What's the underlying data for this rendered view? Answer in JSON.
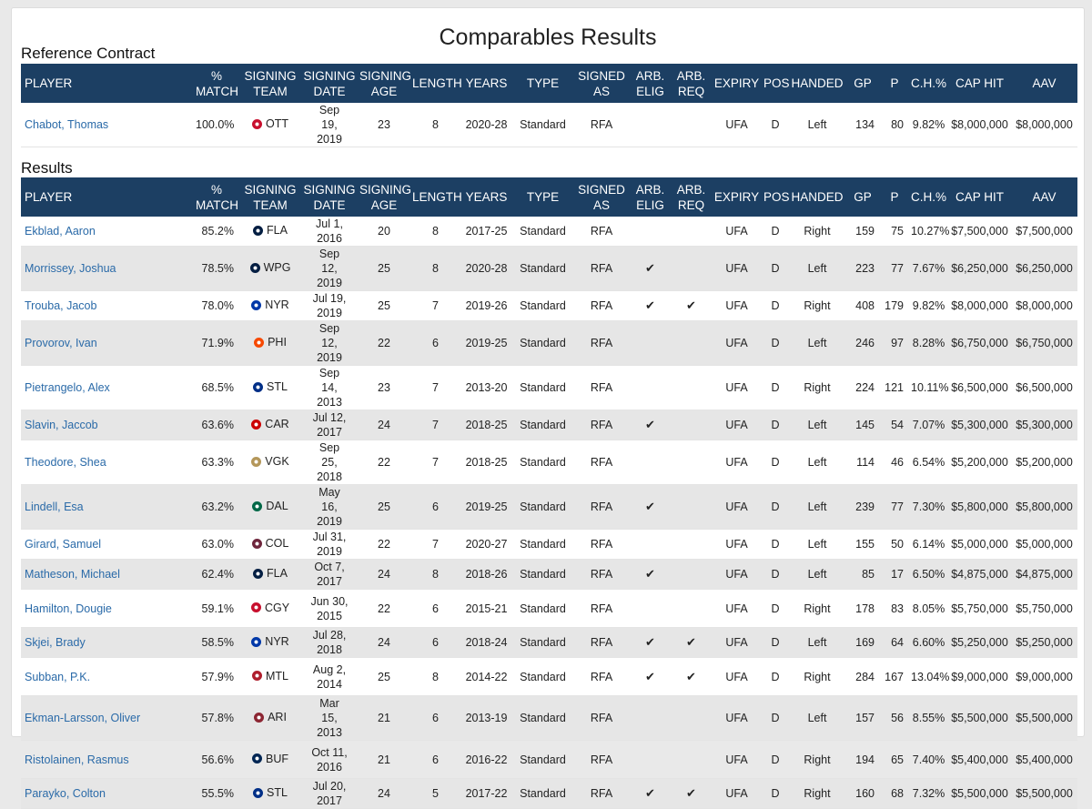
{
  "page_title": "Comparables Results",
  "reference_title": "Reference Contract",
  "results_title": "Results",
  "columns": [
    "PLAYER",
    "% MATCH",
    "SIGNING TEAM",
    "SIGNING DATE",
    "SIGNING AGE",
    "LENGTH",
    "YEARS",
    "TYPE",
    "SIGNED AS",
    "ARB. ELIG",
    "ARB. REQ",
    "EXPIRY",
    "POS",
    "HANDED",
    "GP",
    "P",
    "C.H.%",
    "CAP HIT",
    "AAV"
  ],
  "check_glyph": "✔",
  "team_colors": {
    "OTT": "#c8102e",
    "FLA": "#041e42",
    "WPG": "#041e42",
    "NYR": "#0038a8",
    "PHI": "#f74902",
    "STL": "#002f87",
    "CAR": "#cc0000",
    "VGK": "#b4975a",
    "DAL": "#006847",
    "COL": "#6f263d",
    "CGY": "#c8102e",
    "MTL": "#af1e2d",
    "ARI": "#8c2633",
    "BUF": "#002654"
  },
  "reference": [
    {
      "player": "Chabot, Thomas",
      "match": "100.0%",
      "team": "OTT",
      "date": "Sep 19, 2019",
      "age": "23",
      "length": "8",
      "years": "2020-28",
      "type": "Standard",
      "signed_as": "RFA",
      "arb_elig": "",
      "arb_req": "",
      "expiry": "UFA",
      "pos": "D",
      "handed": "Left",
      "gp": "134",
      "p": "80",
      "ch": "9.82%",
      "cap_hit": "$8,000,000",
      "aav": "$8,000,000"
    }
  ],
  "results": [
    {
      "player": "Ekblad, Aaron",
      "match": "85.2%",
      "team": "FLA",
      "date": "Jul 1, 2016",
      "age": "20",
      "length": "8",
      "years": "2017-25",
      "type": "Standard",
      "signed_as": "RFA",
      "arb_elig": "",
      "arb_req": "",
      "expiry": "UFA",
      "pos": "D",
      "handed": "Right",
      "gp": "159",
      "p": "75",
      "ch": "10.27%",
      "cap_hit": "$7,500,000",
      "aav": "$7,500,000"
    },
    {
      "player": "Morrissey, Joshua",
      "match": "78.5%",
      "team": "WPG",
      "date": "Sep 12, 2019",
      "age": "25",
      "length": "8",
      "years": "2020-28",
      "type": "Standard",
      "signed_as": "RFA",
      "arb_elig": "✔",
      "arb_req": "",
      "expiry": "UFA",
      "pos": "D",
      "handed": "Left",
      "gp": "223",
      "p": "77",
      "ch": "7.67%",
      "cap_hit": "$6,250,000",
      "aav": "$6,250,000"
    },
    {
      "player": "Trouba, Jacob",
      "match": "78.0%",
      "team": "NYR",
      "date": "Jul 19, 2019",
      "age": "25",
      "length": "7",
      "years": "2019-26",
      "type": "Standard",
      "signed_as": "RFA",
      "arb_elig": "✔",
      "arb_req": "✔",
      "expiry": "UFA",
      "pos": "D",
      "handed": "Right",
      "gp": "408",
      "p": "179",
      "ch": "9.82%",
      "cap_hit": "$8,000,000",
      "aav": "$8,000,000"
    },
    {
      "player": "Provorov, Ivan",
      "match": "71.9%",
      "team": "PHI",
      "date": "Sep 12, 2019",
      "age": "22",
      "length": "6",
      "years": "2019-25",
      "type": "Standard",
      "signed_as": "RFA",
      "arb_elig": "",
      "arb_req": "",
      "expiry": "UFA",
      "pos": "D",
      "handed": "Left",
      "gp": "246",
      "p": "97",
      "ch": "8.28%",
      "cap_hit": "$6,750,000",
      "aav": "$6,750,000"
    },
    {
      "player": "Pietrangelo, Alex",
      "match": "68.5%",
      "team": "STL",
      "date": "Sep 14, 2013",
      "age": "23",
      "length": "7",
      "years": "2013-20",
      "type": "Standard",
      "signed_as": "RFA",
      "arb_elig": "",
      "arb_req": "",
      "expiry": "UFA",
      "pos": "D",
      "handed": "Right",
      "gp": "224",
      "p": "121",
      "ch": "10.11%",
      "cap_hit": "$6,500,000",
      "aav": "$6,500,000"
    },
    {
      "player": "Slavin, Jaccob",
      "match": "63.6%",
      "team": "CAR",
      "date": "Jul 12, 2017",
      "age": "24",
      "length": "7",
      "years": "2018-25",
      "type": "Standard",
      "signed_as": "RFA",
      "arb_elig": "✔",
      "arb_req": "",
      "expiry": "UFA",
      "pos": "D",
      "handed": "Left",
      "gp": "145",
      "p": "54",
      "ch": "7.07%",
      "cap_hit": "$5,300,000",
      "aav": "$5,300,000"
    },
    {
      "player": "Theodore, Shea",
      "match": "63.3%",
      "team": "VGK",
      "date": "Sep 25, 2018",
      "age": "22",
      "length": "7",
      "years": "2018-25",
      "type": "Standard",
      "signed_as": "RFA",
      "arb_elig": "",
      "arb_req": "",
      "expiry": "UFA",
      "pos": "D",
      "handed": "Left",
      "gp": "114",
      "p": "46",
      "ch": "6.54%",
      "cap_hit": "$5,200,000",
      "aav": "$5,200,000"
    },
    {
      "player": "Lindell, Esa",
      "match": "63.2%",
      "team": "DAL",
      "date": "May 16, 2019",
      "age": "25",
      "length": "6",
      "years": "2019-25",
      "type": "Standard",
      "signed_as": "RFA",
      "arb_elig": "✔",
      "arb_req": "",
      "expiry": "UFA",
      "pos": "D",
      "handed": "Left",
      "gp": "239",
      "p": "77",
      "ch": "7.30%",
      "cap_hit": "$5,800,000",
      "aav": "$5,800,000"
    },
    {
      "player": "Girard, Samuel",
      "match": "63.0%",
      "team": "COL",
      "date": "Jul 31, 2019",
      "age": "22",
      "length": "7",
      "years": "2020-27",
      "type": "Standard",
      "signed_as": "RFA",
      "arb_elig": "",
      "arb_req": "",
      "expiry": "UFA",
      "pos": "D",
      "handed": "Left",
      "gp": "155",
      "p": "50",
      "ch": "6.14%",
      "cap_hit": "$5,000,000",
      "aav": "$5,000,000"
    },
    {
      "player": "Matheson, Michael",
      "match": "62.4%",
      "team": "FLA",
      "date": "Oct 7, 2017",
      "age": "24",
      "length": "8",
      "years": "2018-26",
      "type": "Standard",
      "signed_as": "RFA",
      "arb_elig": "✔",
      "arb_req": "",
      "expiry": "UFA",
      "pos": "D",
      "handed": "Left",
      "gp": "85",
      "p": "17",
      "ch": "6.50%",
      "cap_hit": "$4,875,000",
      "aav": "$4,875,000"
    },
    {
      "player": "Hamilton, Dougie",
      "match": "59.1%",
      "team": "CGY",
      "date": "Jun 30, 2015",
      "age": "22",
      "length": "6",
      "years": "2015-21",
      "type": "Standard",
      "signed_as": "RFA",
      "arb_elig": "",
      "arb_req": "",
      "expiry": "UFA",
      "pos": "D",
      "handed": "Right",
      "gp": "178",
      "p": "83",
      "ch": "8.05%",
      "cap_hit": "$5,750,000",
      "aav": "$5,750,000"
    },
    {
      "player": "Skjei, Brady",
      "match": "58.5%",
      "team": "NYR",
      "date": "Jul 28, 2018",
      "age": "24",
      "length": "6",
      "years": "2018-24",
      "type": "Standard",
      "signed_as": "RFA",
      "arb_elig": "✔",
      "arb_req": "✔",
      "expiry": "UFA",
      "pos": "D",
      "handed": "Left",
      "gp": "169",
      "p": "64",
      "ch": "6.60%",
      "cap_hit": "$5,250,000",
      "aav": "$5,250,000"
    },
    {
      "player": "Subban, P.K.",
      "match": "57.9%",
      "team": "MTL",
      "date": "Aug 2, 2014",
      "age": "25",
      "length": "8",
      "years": "2014-22",
      "type": "Standard",
      "signed_as": "RFA",
      "arb_elig": "✔",
      "arb_req": "✔",
      "expiry": "UFA",
      "pos": "D",
      "handed": "Right",
      "gp": "284",
      "p": "167",
      "ch": "13.04%",
      "cap_hit": "$9,000,000",
      "aav": "$9,000,000"
    },
    {
      "player": "Ekman-Larsson, Oliver",
      "match": "57.8%",
      "team": "ARI",
      "date": "Mar 15, 2013",
      "age": "21",
      "length": "6",
      "years": "2013-19",
      "type": "Standard",
      "signed_as": "RFA",
      "arb_elig": "",
      "arb_req": "",
      "expiry": "UFA",
      "pos": "D",
      "handed": "Left",
      "gp": "157",
      "p": "56",
      "ch": "8.55%",
      "cap_hit": "$5,500,000",
      "aav": "$5,500,000"
    },
    {
      "player": "Ristolainen, Rasmus",
      "match": "56.6%",
      "team": "BUF",
      "date": "Oct 11, 2016",
      "age": "21",
      "length": "6",
      "years": "2016-22",
      "type": "Standard",
      "signed_as": "RFA",
      "arb_elig": "",
      "arb_req": "",
      "expiry": "UFA",
      "pos": "D",
      "handed": "Right",
      "gp": "194",
      "p": "65",
      "ch": "7.40%",
      "cap_hit": "$5,400,000",
      "aav": "$5,400,000"
    },
    {
      "player": "Parayko, Colton",
      "match": "55.5%",
      "team": "STL",
      "date": "Jul 20, 2017",
      "age": "24",
      "length": "5",
      "years": "2017-22",
      "type": "Standard",
      "signed_as": "RFA",
      "arb_elig": "✔",
      "arb_req": "✔",
      "expiry": "UFA",
      "pos": "D",
      "handed": "Right",
      "gp": "160",
      "p": "68",
      "ch": "7.32%",
      "cap_hit": "$5,500,000",
      "aav": "$5,500,000"
    }
  ]
}
